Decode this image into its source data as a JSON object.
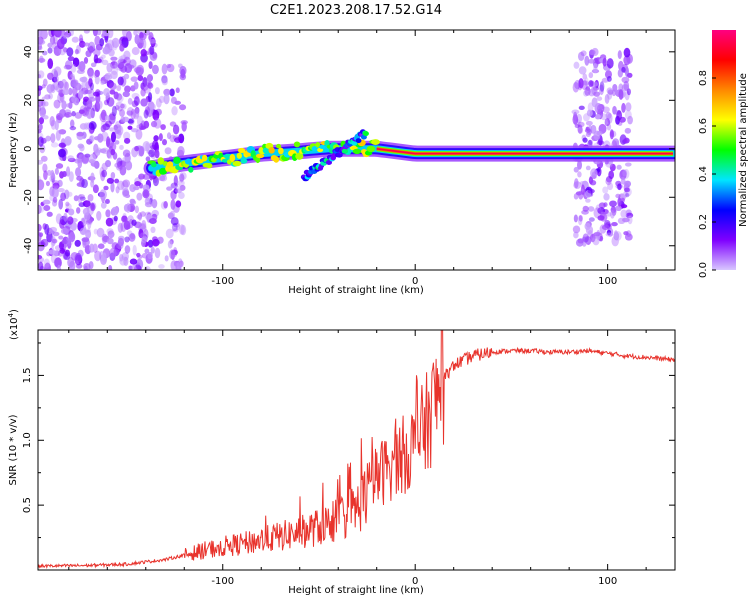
{
  "title": "C2E1.2023.208.17.52.G14",
  "chart_data": [
    {
      "type": "heatmap",
      "xlabel": "Height of straight line (km)",
      "ylabel": "Frequency (Hz)",
      "xlim": [
        -196,
        135
      ],
      "ylim": [
        -50,
        49
      ],
      "xticks": [
        -100,
        0,
        100
      ],
      "yticks": [
        -40,
        -20,
        0,
        20,
        40
      ],
      "colorbar": {
        "label": "Normalized spectral amplitude",
        "range": [
          0,
          1
        ],
        "ticks": [
          "0.0",
          "0.2",
          "0.4",
          "0.6",
          "0.8"
        ],
        "colors": [
          "#d9c7ff",
          "#7f00ff",
          "#0000ff",
          "#00e6ff",
          "#00ff00",
          "#ffff00",
          "#ff8800",
          "#ff0000",
          "#ff0080"
        ]
      },
      "ridge": {
        "x": [
          -137,
          -120,
          -100,
          -80,
          -60,
          -45,
          -30,
          -20,
          0,
          20,
          50,
          80,
          90,
          110,
          135
        ],
        "y": [
          -8,
          -6,
          -4,
          -2,
          -1,
          0,
          0,
          0,
          -2,
          -2,
          -2,
          -2,
          -2,
          -2,
          -2
        ]
      },
      "noise_regions": [
        {
          "x": [
            -196,
            -135
          ],
          "y": [
            -50,
            49
          ]
        },
        {
          "x": [
            -135,
            -120
          ],
          "y": [
            -50,
            35
          ]
        },
        {
          "x": [
            83,
            112
          ],
          "y": [
            -40,
            40
          ]
        }
      ]
    },
    {
      "type": "line",
      "xlabel": "Height of straight line (km)",
      "ylabel": "SNR (10 * v/v)",
      "y_multiplier": "(x10",
      "y_multiplier_exp": "4",
      "y_multiplier_close": ")",
      "xlim": [
        -196,
        135
      ],
      "ylim": [
        0,
        18500
      ],
      "xticks": [
        -100,
        0,
        100
      ],
      "yticks": [
        {
          "value": 5000,
          "label": "0.5"
        },
        {
          "value": 10000,
          "label": "1.0"
        },
        {
          "value": 15000,
          "label": "1.5"
        }
      ],
      "series": [
        {
          "color": "#e8332c",
          "x": [
            -196,
            -170,
            -150,
            -130,
            -110,
            -100,
            -90,
            -80,
            -70,
            -60,
            -50,
            -40,
            -30,
            -25,
            -20,
            -15,
            -10,
            -5,
            0,
            5,
            10,
            15,
            20,
            30,
            40,
            50,
            60,
            70,
            80,
            90,
            100,
            110,
            120,
            135
          ],
          "y": [
            300,
            350,
            450,
            800,
            1500,
            1800,
            2000,
            2300,
            2600,
            2900,
            3300,
            3900,
            4800,
            6000,
            7200,
            7800,
            8500,
            9000,
            9700,
            11000,
            12800,
            14800,
            15800,
            16500,
            16800,
            16900,
            16900,
            16800,
            16800,
            16900,
            16700,
            16500,
            16400,
            16200
          ]
        }
      ]
    }
  ]
}
